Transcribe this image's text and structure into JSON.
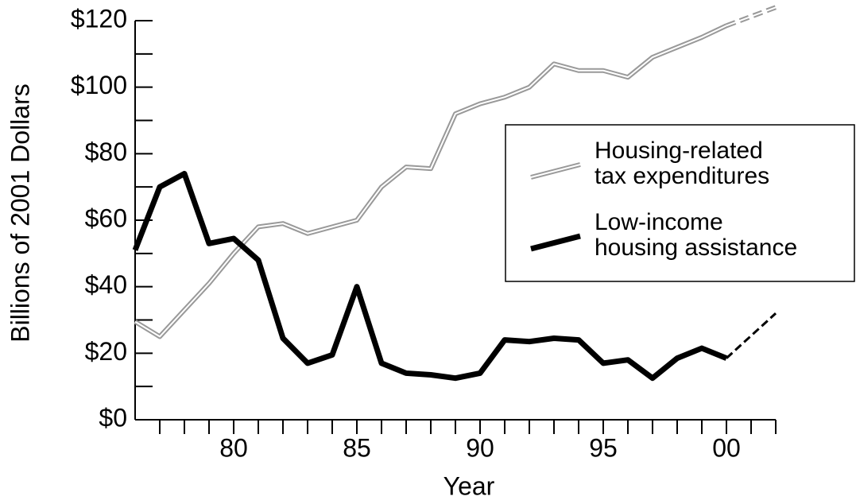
{
  "chart_data": {
    "type": "line",
    "x_label": "Year",
    "y_label": "Billions of 2001 Dollars",
    "x": [
      1976,
      1977,
      1978,
      1979,
      1980,
      1981,
      1982,
      1983,
      1984,
      1985,
      1986,
      1987,
      1988,
      1989,
      1990,
      1991,
      1992,
      1993,
      1994,
      1995,
      1996,
      1997,
      1998,
      1999,
      2000
    ],
    "series": [
      {
        "name": "Housing-related\ntax expenditures",
        "color": "#999999",
        "style": "double",
        "values": [
          29.5,
          25,
          33,
          41,
          50,
          58,
          59,
          56,
          58,
          60,
          70,
          76,
          75.5,
          92,
          95,
          97,
          100,
          107,
          105,
          105,
          103,
          109,
          112,
          115,
          118.5
        ],
        "projection": {
          "x": [
            2000,
            2002
          ],
          "values": [
            118.5,
            124
          ]
        }
      },
      {
        "name": "Low-income\nhousing assistance",
        "color": "#000000",
        "style": "solid",
        "values": [
          51,
          70,
          74,
          53,
          54.5,
          48,
          24.5,
          17,
          19.5,
          40,
          17,
          14,
          13.5,
          12.5,
          14,
          24,
          23.5,
          24.5,
          24,
          17,
          18,
          12.5,
          18.5,
          21.5,
          18.5
        ],
        "projection": {
          "x": [
            2000,
            2002
          ],
          "values": [
            18.5,
            32
          ]
        }
      }
    ],
    "xlim": [
      1976,
      2002
    ],
    "xticks": [
      {
        "value": 1980,
        "label": "80"
      },
      {
        "value": 1985,
        "label": "85"
      },
      {
        "value": 1990,
        "label": "90"
      },
      {
        "value": 1995,
        "label": "95"
      },
      {
        "value": 2000,
        "label": "00"
      }
    ],
    "xticks_minor": [
      1977,
      1978,
      1979,
      1981,
      1982,
      1983,
      1984,
      1986,
      1987,
      1988,
      1989,
      1991,
      1992,
      1993,
      1994,
      1996,
      1997,
      1998,
      1999,
      2001,
      2002
    ],
    "ylim": [
      0,
      120
    ],
    "yticks": [
      {
        "value": 0,
        "label": "$0"
      },
      {
        "value": 20,
        "label": "$20"
      },
      {
        "value": 40,
        "label": "$40"
      },
      {
        "value": 60,
        "label": "$60"
      },
      {
        "value": 80,
        "label": "$80"
      },
      {
        "value": 100,
        "label": "$100"
      },
      {
        "value": 120,
        "label": "$120"
      }
    ],
    "yticks_minor": [
      10,
      30,
      50,
      70,
      90,
      110
    ],
    "legend": "right"
  }
}
